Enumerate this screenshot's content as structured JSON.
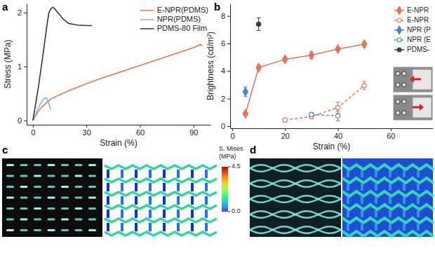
{
  "chart_data": [
    {
      "type": "line",
      "panel": "a",
      "xlabel": "Strain (%)",
      "ylabel": "Stress (MPa)",
      "xlim": [
        -3.5,
        99.5
      ],
      "xticks": [
        0,
        30,
        60,
        90
      ],
      "ylim": [
        -0.08,
        2.17
      ],
      "yticks": [
        0,
        1,
        2
      ],
      "legend": "upper right",
      "series": [
        {
          "name": "E-NPR(PDMS)",
          "color": "#e8735a",
          "line_style": "solid",
          "x": [
            0,
            2,
            5,
            10,
            20,
            30,
            40,
            50,
            60,
            70,
            80,
            90,
            94,
            95
          ],
          "values": [
            0,
            0.12,
            0.25,
            0.4,
            0.55,
            0.68,
            0.8,
            0.91,
            1.02,
            1.13,
            1.24,
            1.35,
            1.41,
            1.38
          ]
        },
        {
          "name": "NPR(PDMS)",
          "color": "#7fb2e5",
          "line_style": "solid",
          "x": [
            0,
            2,
            4,
            6,
            7,
            8,
            9,
            10
          ],
          "values": [
            0,
            0.15,
            0.3,
            0.4,
            0.42,
            0.4,
            0.3,
            0.2
          ]
        },
        {
          "name": "PDMS-80 Film",
          "color": "#333333",
          "line_style": "solid",
          "x": [
            0,
            3,
            6,
            8,
            9,
            10,
            11,
            12,
            14,
            17,
            20,
            25,
            30,
            33
          ],
          "values": [
            0,
            0.6,
            1.3,
            1.8,
            2.0,
            2.07,
            2.1,
            2.08,
            2.0,
            1.88,
            1.8,
            1.77,
            1.76,
            1.76
          ]
        }
      ]
    },
    {
      "type": "line",
      "panel": "b",
      "xlabel": "Strain (%)",
      "ylabel": "Brightness (cd/m²)",
      "xlim": [
        -0.8,
        76
      ],
      "xticks": [
        0,
        20,
        40,
        60
      ],
      "ylim": [
        -0.15,
        8.9
      ],
      "yticks": [
        0,
        2,
        4,
        6,
        8
      ],
      "legend": "upper right",
      "series": [
        {
          "name": "E-NPR",
          "color": "#e8735a",
          "marker": "diamond",
          "line_style": "solid",
          "x": [
            5,
            10,
            20,
            30,
            40,
            50
          ],
          "values": [
            0.9,
            4.25,
            4.85,
            5.15,
            5.6,
            5.95
          ],
          "errors": [
            0.05,
            0.1,
            0.15,
            0.25,
            0.1,
            0.15
          ]
        },
        {
          "name": "E-NPR",
          "color": "#e8735a",
          "marker": "open-circle",
          "line_style": "dashed",
          "x": [
            20,
            30,
            40,
            50
          ],
          "values": [
            0.45,
            0.7,
            1.35,
            2.95
          ],
          "errors": [
            0.15,
            0.15,
            0.4,
            0.3
          ]
        },
        {
          "name": "NPR (P",
          "color": "#4a86c8",
          "marker": "diamond",
          "line_style": "solid",
          "x": [
            5
          ],
          "values": [
            2.5
          ],
          "errors": [
            0.35
          ]
        },
        {
          "name": "NPR (E",
          "color": "#4a86c8",
          "marker": "open-circle",
          "line_style": "dashed",
          "x": [
            30,
            40
          ],
          "values": [
            0.85,
            0.75
          ],
          "errors": [
            0.15,
            0.35
          ]
        },
        {
          "name": "PDMS-",
          "color": "#404040",
          "marker": "circle",
          "line_style": "solid",
          "x": [
            10
          ],
          "values": [
            7.4
          ],
          "errors": [
            0.45
          ]
        }
      ]
    }
  ],
  "images": [
    {
      "panel": "c",
      "colorbar": {
        "title": [
          "S, Mises",
          "(MPa)"
        ],
        "range": [
          0,
          4.5
        ],
        "ticks": [
          {
            "value": 4.5,
            "label": "4.5"
          },
          {
            "value": 0,
            "label": "0.0"
          }
        ]
      }
    },
    {
      "panel": "d"
    }
  ]
}
